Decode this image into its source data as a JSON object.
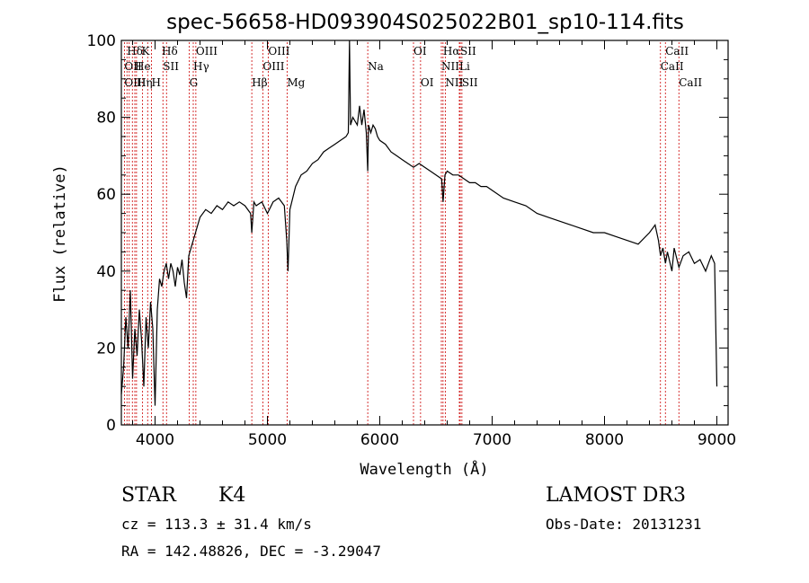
{
  "chart_data": {
    "type": "line",
    "title": "spec-56658-HD093904S025022B01_sp10-114.fits",
    "xlabel": "Wavelength (Å)",
    "ylabel": "Flux (relative)",
    "xlim": [
      3700,
      9100
    ],
    "ylim": [
      0,
      100
    ],
    "x_ticks": [
      4000,
      5000,
      6000,
      7000,
      8000,
      9000
    ],
    "y_ticks": [
      0,
      20,
      40,
      60,
      80,
      100
    ],
    "grid": false,
    "line_color": "#000000",
    "marker_color": "#cc0000",
    "series": [
      {
        "x": [
          3700,
          3720,
          3740,
          3760,
          3780,
          3800,
          3820,
          3840,
          3860,
          3880,
          3900,
          3920,
          3940,
          3960,
          3980,
          4000,
          4020,
          4040,
          4060,
          4080,
          4100,
          4120,
          4140,
          4160,
          4180,
          4200,
          4220,
          4240,
          4260,
          4280,
          4300,
          4320,
          4340,
          4360,
          4380,
          4400,
          4450,
          4500,
          4550,
          4600,
          4650,
          4700,
          4750,
          4800,
          4850,
          4861,
          4880,
          4900,
          4950,
          5000,
          5050,
          5100,
          5150,
          5172,
          5183,
          5200,
          5250,
          5300,
          5350,
          5400,
          5450,
          5500,
          5550,
          5600,
          5650,
          5700,
          5720,
          5730,
          5740,
          5760,
          5800,
          5820,
          5840,
          5860,
          5880,
          5893,
          5900,
          5920,
          5940,
          5960,
          5980,
          6000,
          6050,
          6100,
          6150,
          6200,
          6250,
          6300,
          6350,
          6400,
          6450,
          6500,
          6550,
          6563,
          6580,
          6600,
          6650,
          6700,
          6750,
          6800,
          6850,
          6900,
          6950,
          7000,
          7100,
          7200,
          7300,
          7400,
          7500,
          7600,
          7700,
          7800,
          7900,
          8000,
          8100,
          8200,
          8300,
          8400,
          8450,
          8480,
          8498,
          8520,
          8542,
          8560,
          8600,
          8620,
          8662,
          8700,
          8750,
          8800,
          8850,
          8900,
          8950,
          8980,
          9000
        ],
        "values": [
          8,
          15,
          28,
          20,
          35,
          12,
          25,
          18,
          30,
          22,
          10,
          28,
          20,
          32,
          25,
          5,
          30,
          38,
          36,
          40,
          42,
          38,
          42,
          40,
          36,
          41,
          39,
          43,
          37,
          33,
          44,
          46,
          48,
          50,
          52,
          54,
          56,
          55,
          57,
          56,
          58,
          57,
          58,
          57,
          55,
          50,
          58,
          57,
          58,
          55,
          58,
          59,
          57,
          48,
          40,
          56,
          62,
          65,
          66,
          68,
          69,
          71,
          72,
          73,
          74,
          75,
          76,
          100,
          78,
          80,
          78,
          83,
          78,
          82,
          76,
          66,
          78,
          76,
          78,
          77,
          75,
          74,
          73,
          71,
          70,
          69,
          68,
          67,
          68,
          67,
          66,
          65,
          64,
          58,
          65,
          66,
          65,
          65,
          64,
          63,
          63,
          62,
          62,
          61,
          59,
          58,
          57,
          55,
          54,
          53,
          52,
          51,
          50,
          50,
          49,
          48,
          47,
          50,
          52,
          48,
          44,
          46,
          42,
          45,
          40,
          46,
          41,
          44,
          45,
          42,
          43,
          40,
          44,
          42,
          10
        ],
        "values_note": "",
        "name": ""
      }
    ],
    "spectral_lines": [
      {
        "label": "Hδ",
        "x": 3750,
        "row": 0
      },
      {
        "label": "K",
        "x": 3880,
        "row": 0
      },
      {
        "label": "Hδ",
        "x": 4060,
        "row": 0
      },
      {
        "label": "OIII",
        "x": 4363,
        "row": 0
      },
      {
        "label": "OIII",
        "x": 5007,
        "row": 0
      },
      {
        "label": "OI",
        "x": 6300,
        "row": 0
      },
      {
        "label": "Hα",
        "x": 6563,
        "row": 0
      },
      {
        "label": "SII",
        "x": 6716,
        "row": 0
      },
      {
        "label": "CaII",
        "x": 8542,
        "row": 0
      },
      {
        "label": "OII",
        "x": 3727,
        "row": 1
      },
      {
        "label": "He",
        "x": 3820,
        "row": 1
      },
      {
        "label": "SII",
        "x": 4070,
        "row": 1
      },
      {
        "label": "Hγ",
        "x": 4340,
        "row": 1
      },
      {
        "label": "OIII",
        "x": 4959,
        "row": 1
      },
      {
        "label": "Na",
        "x": 5893,
        "row": 1
      },
      {
        "label": "NII",
        "x": 6548,
        "row": 1
      },
      {
        "label": "Li",
        "x": 6708,
        "row": 1
      },
      {
        "label": "CaII",
        "x": 8498,
        "row": 1
      },
      {
        "label": "OIII",
        "x": 3727,
        "row": 2
      },
      {
        "label": "Hη",
        "x": 3835,
        "row": 2
      },
      {
        "label": "H",
        "x": 3968,
        "row": 2
      },
      {
        "label": "G",
        "x": 4305,
        "row": 2
      },
      {
        "label": "Hβ",
        "x": 4861,
        "row": 2
      },
      {
        "label": "Mg",
        "x": 5175,
        "row": 2
      },
      {
        "label": "OI",
        "x": 6363,
        "row": 2
      },
      {
        "label": "NII",
        "x": 6583,
        "row": 2
      },
      {
        "label": "SII",
        "x": 6731,
        "row": 2
      },
      {
        "label": "CaII",
        "x": 8662,
        "row": 2
      }
    ],
    "line_markers_x": [
      3727,
      3750,
      3770,
      3798,
      3820,
      3835,
      3889,
      3934,
      3968,
      4070,
      4102,
      4305,
      4340,
      4363,
      4861,
      4959,
      5007,
      5175,
      5893,
      6300,
      6363,
      6548,
      6563,
      6583,
      6708,
      6716,
      6731,
      8498,
      8542,
      8662
    ]
  },
  "info": {
    "object_class": "STAR",
    "subclass": "K4",
    "survey": "LAMOST DR3",
    "redshift_line": "cz = 113.3 ± 31.4 km/s",
    "obs_date": "Obs-Date: 20131231",
    "coords": "RA = 142.48826, DEC =  -3.29047"
  }
}
